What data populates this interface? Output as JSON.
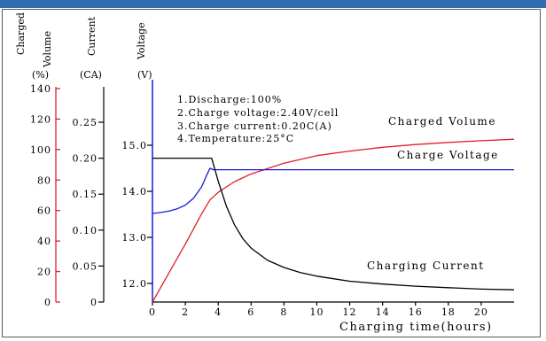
{
  "colors": {
    "header": "#2f6fb1",
    "charged_volume": "#e0202a",
    "charge_voltage": "#1a1ad6",
    "charging_current": "#000000"
  },
  "chart_data": {
    "type": "line",
    "xlabel": "Charging time(hours)",
    "x_ticks": [
      0,
      2,
      4,
      6,
      8,
      10,
      12,
      14,
      16,
      18,
      20
    ],
    "xlim": [
      0,
      22
    ],
    "axes": {
      "charged": {
        "label_top": "Charged",
        "label_unit": "(%)",
        "ticks": [
          0,
          20,
          40,
          60,
          80,
          100,
          120,
          140
        ],
        "ylim": [
          0,
          140
        ]
      },
      "volume": {
        "label_top": "Volume",
        "label_unit": ""
      },
      "current": {
        "label_top": "Current",
        "label_unit": "(CA)",
        "ticks": [
          "0",
          "0.05",
          "0.10",
          "0.15",
          "0.20",
          "0.25"
        ],
        "ylim": [
          0,
          0.35
        ]
      },
      "voltage": {
        "label_top": "Voltage",
        "label_unit": "(V)",
        "ticks": [
          "12.0",
          "13.0",
          "14.0",
          "15.0"
        ],
        "ylim": [
          11.7,
          16.3
        ]
      }
    },
    "notes": [
      "1.Discharge:100%",
      "2.Charge voltage:2.40V/cell",
      "3.Charge current:0.20C(A)",
      "4.Temperature:25°C"
    ],
    "series": [
      {
        "name": "Charged Volume",
        "axis": "charged",
        "x": [
          0,
          1,
          2,
          3,
          3.5,
          4,
          5,
          6,
          8,
          10,
          12,
          14,
          16,
          18,
          20,
          22
        ],
        "y": [
          0,
          19,
          38,
          58,
          67,
          72,
          79,
          84,
          91,
          96,
          99,
          101.5,
          103.3,
          104.7,
          105.8,
          106.8
        ]
      },
      {
        "name": "Charge Voltage",
        "axis": "voltage",
        "x": [
          0,
          0.5,
          1,
          1.5,
          2,
          2.5,
          3,
          3.3,
          3.5,
          3.7,
          4,
          6,
          10,
          15,
          22
        ],
        "y": [
          13.52,
          13.54,
          13.57,
          13.62,
          13.7,
          13.85,
          14.1,
          14.35,
          14.5,
          14.47,
          14.47,
          14.47,
          14.47,
          14.47,
          14.47
        ]
      },
      {
        "name": "Charging Current",
        "axis": "current",
        "x": [
          0,
          1,
          2,
          3,
          3.6,
          4,
          4.5,
          5,
          5.5,
          6,
          7,
          8,
          9,
          10,
          12,
          14,
          16,
          18,
          20,
          22
        ],
        "y": [
          0.2,
          0.2,
          0.2,
          0.2,
          0.2,
          0.168,
          0.133,
          0.107,
          0.088,
          0.075,
          0.058,
          0.048,
          0.041,
          0.036,
          0.029,
          0.025,
          0.022,
          0.02,
          0.018,
          0.017
        ]
      }
    ],
    "series_labels": {
      "charged_volume": "Charged Volume",
      "charge_voltage": "Charge Voltage",
      "charging_current": "Charging Current"
    }
  }
}
